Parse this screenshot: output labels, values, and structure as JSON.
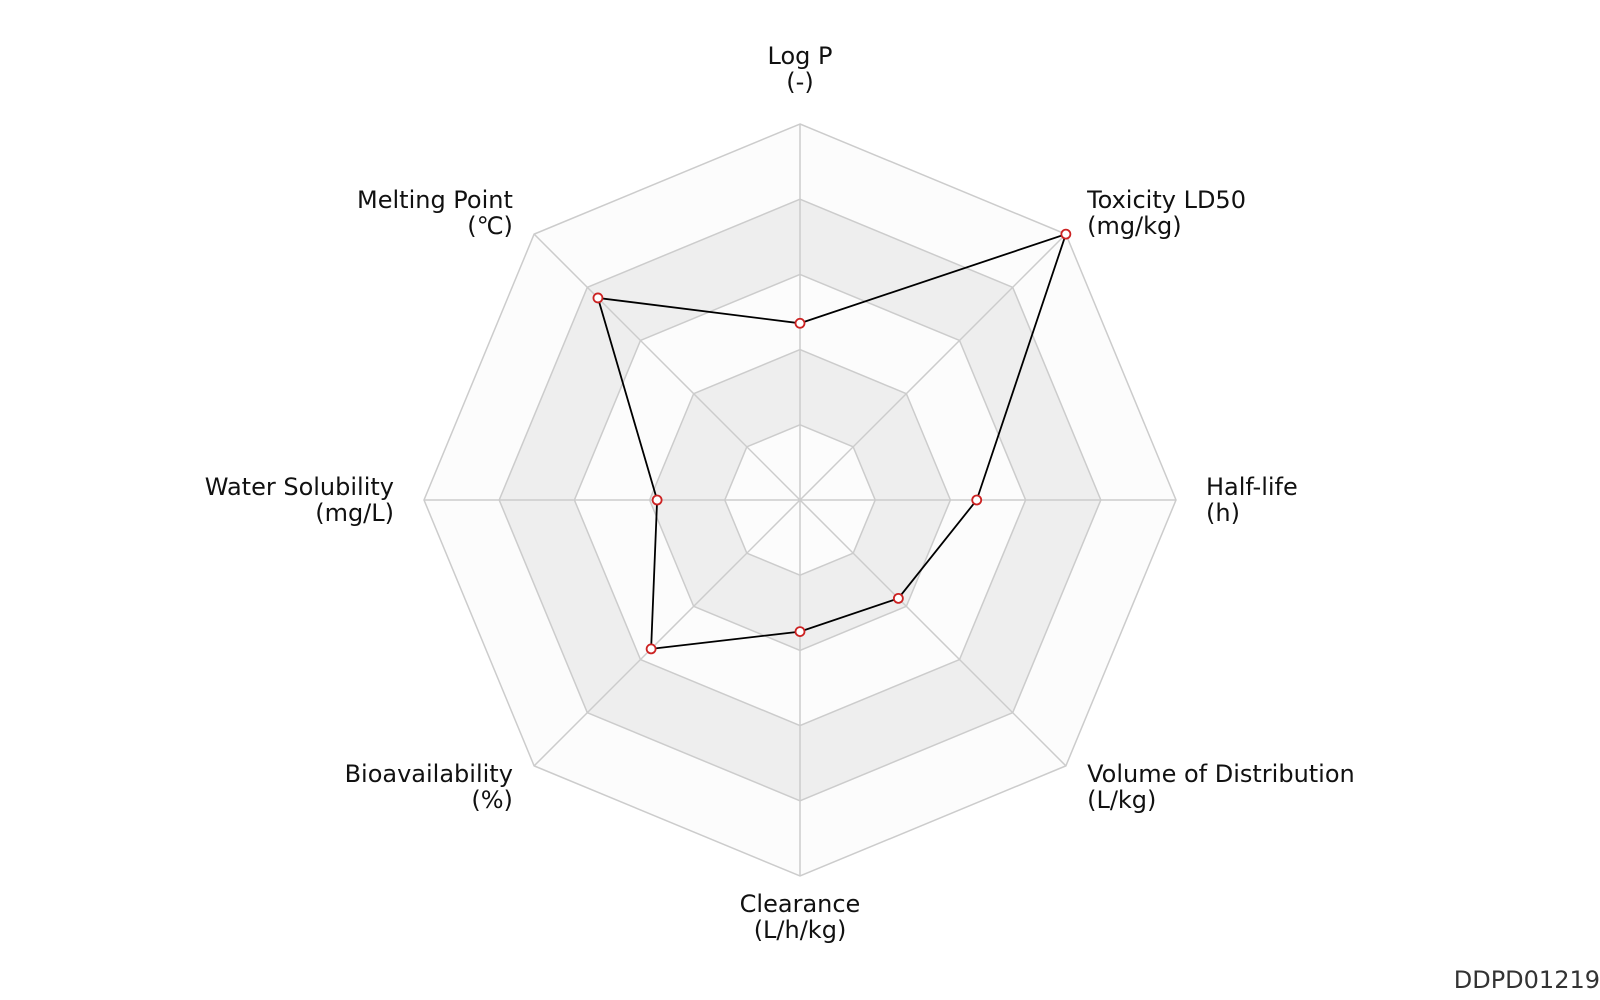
{
  "chart_data": {
    "type": "radar",
    "id_label": "DDPD01219",
    "axes": [
      {
        "name": "Log P",
        "unit": "(-)"
      },
      {
        "name": "Toxicity LD50",
        "unit": "(mg/kg)"
      },
      {
        "name": "Half-life",
        "unit": "(h)"
      },
      {
        "name": "Volume of Distribution",
        "unit": "(L/kg)"
      },
      {
        "name": "Clearance",
        "unit": "(L/h/kg)"
      },
      {
        "name": "Bioavailability",
        "unit": "(%)"
      },
      {
        "name": "Water Solubility",
        "unit": "(mg/L)"
      },
      {
        "name": "Melting Point",
        "unit": "(℃)"
      }
    ],
    "series": [
      {
        "values": [
          0.47,
          1.0,
          0.47,
          0.37,
          0.35,
          0.56,
          0.38,
          0.76
        ]
      }
    ],
    "range": [
      0,
      1
    ],
    "rings": 5,
    "grid": true,
    "colors": {
      "band_dark": "#eeeeee",
      "band_light": "#fcfcfc",
      "grid_line": "#cccccc",
      "series_line": "#000000",
      "marker_edge": "#cc2222",
      "marker_fill": "#ffffff"
    }
  }
}
